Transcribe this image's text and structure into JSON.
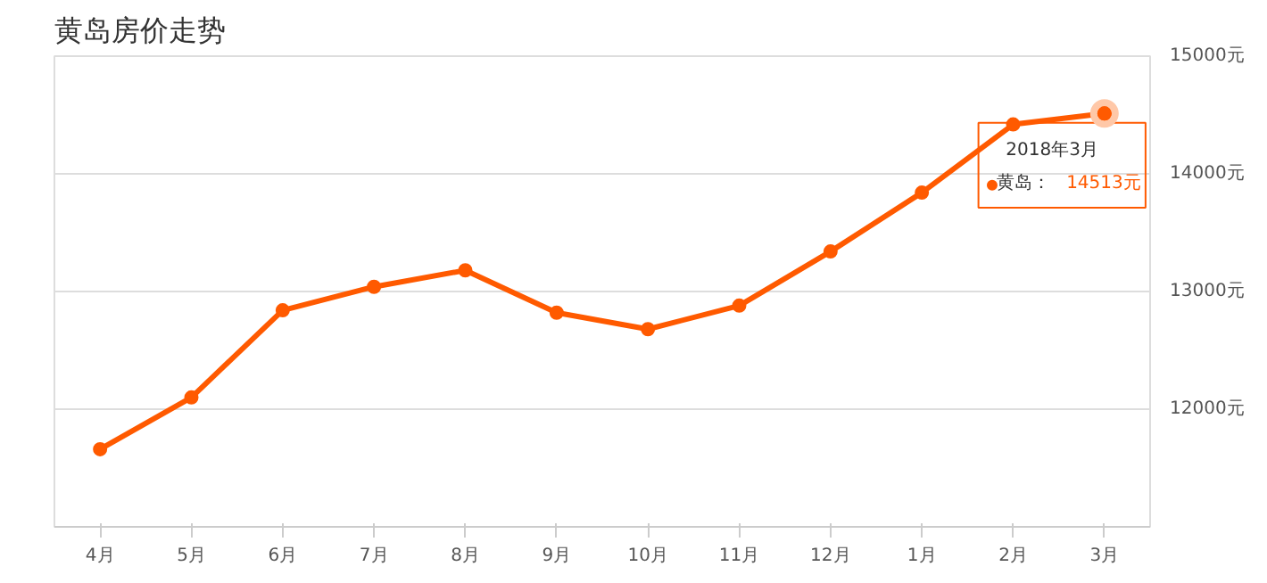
{
  "chart_data": {
    "type": "line",
    "title": "黄岛房价走势",
    "categories": [
      "4月",
      "5月",
      "6月",
      "7月",
      "8月",
      "9月",
      "10月",
      "11月",
      "12月",
      "1月",
      "2月",
      "3月"
    ],
    "series": [
      {
        "name": "黄岛：",
        "color": "#ff5a00",
        "values": [
          11660,
          12100,
          12840,
          13040,
          13180,
          12820,
          12680,
          12880,
          13340,
          13840,
          14420,
          14513
        ],
        "value_labels": [
          null,
          null,
          null,
          null,
          null,
          null,
          null,
          null,
          null,
          null,
          null,
          "14513元"
        ]
      }
    ],
    "ylim": [
      11000,
      15000
    ],
    "yticks": [
      {
        "value": 12000,
        "label": "12000元"
      },
      {
        "value": 13000,
        "label": "13000元"
      },
      {
        "value": 14000,
        "label": "14000元"
      },
      {
        "value": 15000,
        "label": "15000元"
      }
    ],
    "grid": "y",
    "marker": "circle",
    "line_style": "solid",
    "legend": "right",
    "annotations": [
      "2018年3月"
    ]
  }
}
